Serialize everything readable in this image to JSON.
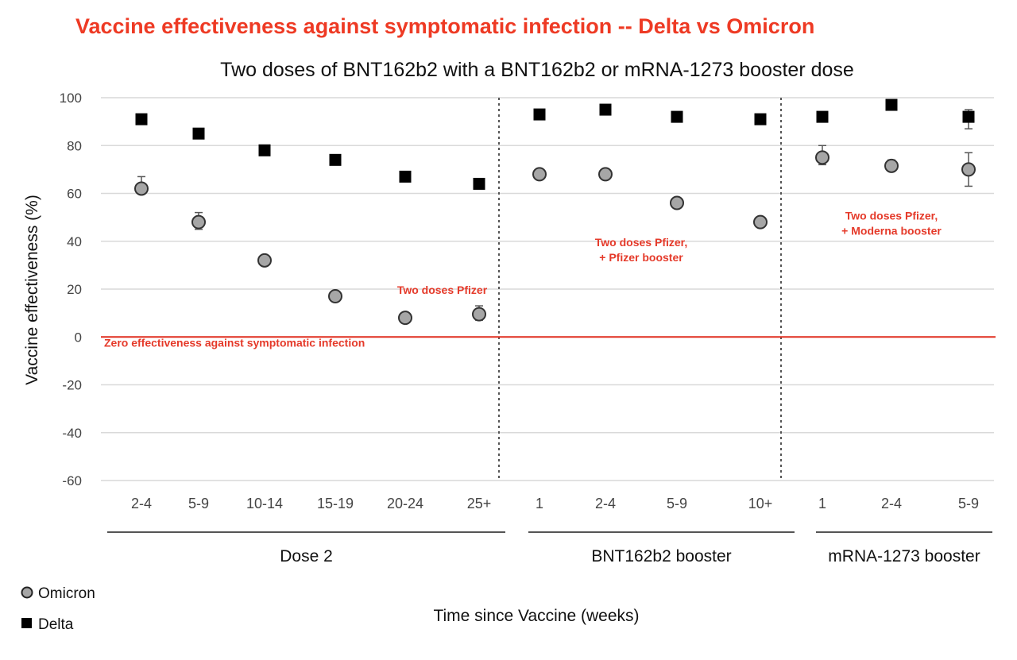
{
  "headline": "Vaccine effectiveness against symptomatic infection -- Delta vs Omicron",
  "colors": {
    "headline": "#ee3a24",
    "annotation": "#e53a2a",
    "zero_line": "#e02f1f",
    "omicron_fill": "#a6a6a6",
    "delta_fill": "#000000",
    "grid": "#d9d9d9",
    "divider": "#555555"
  },
  "chart_data": {
    "type": "scatter",
    "title": "Two doses of BNT162b2 with a BNT162b2 or mRNA-1273 booster dose",
    "xlabel": "Time since Vaccine (weeks)",
    "ylabel": "Vaccine effectiveness (%)",
    "ylim": [
      -60,
      100
    ],
    "yticks": [
      100,
      80,
      60,
      40,
      20,
      0,
      -20,
      -40,
      -60
    ],
    "grid": true,
    "legend_position": "bottom-left",
    "categories": [
      "2-4",
      "5-9",
      "10-14",
      "15-19",
      "20-24",
      "25+",
      "1",
      "2-4",
      "5-9",
      "10+",
      "1",
      "2-4",
      "5-9"
    ],
    "groups": [
      {
        "label": "Dose 2",
        "start": 0,
        "end": 5
      },
      {
        "label": "BNT162b2 booster",
        "start": 6,
        "end": 9
      },
      {
        "label": "mRNA-1273 booster",
        "start": 10,
        "end": 12
      }
    ],
    "series": [
      {
        "name": "Omicron",
        "marker": "circle",
        "values": [
          62,
          48,
          32,
          17,
          8,
          9.5,
          68,
          68,
          56,
          48,
          75,
          71.5,
          70
        ],
        "err_low": [
          60,
          45,
          31,
          16,
          7,
          7,
          67,
          67,
          55,
          47,
          72,
          70,
          63
        ],
        "err_high": [
          67,
          52,
          33,
          17.5,
          9,
          13,
          69,
          69,
          57,
          49,
          80,
          74,
          77
        ]
      },
      {
        "name": "Delta",
        "marker": "square",
        "values": [
          91,
          85,
          78,
          74,
          67,
          64,
          93,
          95,
          92,
          91,
          92,
          97,
          92
        ],
        "err_low": [
          90,
          84,
          77,
          73,
          66,
          63,
          92,
          94,
          91,
          90,
          91,
          96,
          87
        ],
        "err_high": [
          92,
          86,
          79,
          75,
          68,
          65,
          94,
          96,
          93,
          92,
          93,
          98,
          95
        ]
      }
    ],
    "annotations": [
      {
        "lines": [
          "Zero effectiveness against symptomatic infection"
        ],
        "x": 0,
        "y": -4,
        "align": "start"
      },
      {
        "lines": [
          "Two doses Pfizer"
        ],
        "x": 4.5,
        "y": 18,
        "align": "middle"
      },
      {
        "lines": [
          "Two doses Pfizer,",
          "+ Pfizer booster"
        ],
        "x": 7.5,
        "y": 38,
        "align": "middle"
      },
      {
        "lines": [
          "Two doses Pfizer,",
          "+ Moderna booster"
        ],
        "x": 11.0,
        "y": 49,
        "align": "middle"
      }
    ]
  }
}
